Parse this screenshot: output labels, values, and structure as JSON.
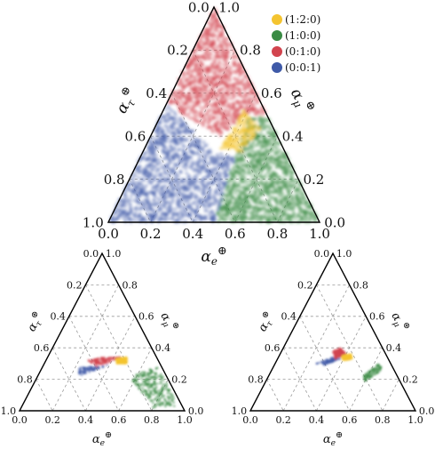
{
  "chart_data": [
    {
      "type": "scatter",
      "subtype": "ternary",
      "axis_labels": {
        "bottom": "α_e⊕",
        "left": "α_τ⊕",
        "right": "α_μ⊕"
      },
      "ticks": [
        "0.0",
        "0.2",
        "0.4",
        "0.6",
        "0.8",
        "1.0"
      ],
      "grid": true,
      "legend": {
        "placement": "top-right",
        "entries": [
          {
            "label": "(1:2:0)",
            "color": "#f4c430"
          },
          {
            "label": "(1:0:0)",
            "color": "#3a8b44"
          },
          {
            "label": "(0:1:0)",
            "color": "#d2444e"
          },
          {
            "label": "(0:0:1)",
            "color": "#3f5aa8"
          }
        ]
      },
      "series": [
        {
          "name": "(1:0:0)",
          "color": "#3a8b44",
          "region": [
            [
              0.5,
              0.0,
              0.5
            ],
            [
              1.0,
              0.0,
              0.0
            ],
            [
              0.5,
              0.5,
              0.0
            ],
            [
              0.42,
              0.48,
              0.1
            ],
            [
              0.45,
              0.3,
              0.25
            ]
          ]
        },
        {
          "name": "(0:0:1)",
          "color": "#3f5aa8",
          "region": [
            [
              0.0,
              0.0,
              1.0
            ],
            [
              0.5,
              0.0,
              0.5
            ],
            [
              0.45,
              0.3,
              0.25
            ],
            [
              0.33,
              0.33,
              0.34
            ],
            [
              0.0,
              0.55,
              0.45
            ]
          ]
        },
        {
          "name": "(0:1:0)",
          "color": "#d2444e",
          "region": [
            [
              0.0,
              1.0,
              0.0
            ],
            [
              0.5,
              0.5,
              0.0
            ],
            [
              0.4,
              0.5,
              0.1
            ],
            [
              0.33,
              0.4,
              0.27
            ],
            [
              0.0,
              0.55,
              0.45
            ]
          ]
        },
        {
          "name": "(1:2:0)",
          "color": "#f4c430",
          "region": [
            [
              0.38,
              0.52,
              0.1
            ],
            [
              0.5,
              0.44,
              0.06
            ],
            [
              0.47,
              0.33,
              0.2
            ],
            [
              0.36,
              0.34,
              0.3
            ]
          ]
        }
      ]
    },
    {
      "type": "scatter",
      "subtype": "ternary",
      "axis_labels": {
        "bottom": "α_e⊕",
        "left": "α_τ⊕",
        "right": "α_μ⊕"
      },
      "ticks": [
        "0.0",
        "0.2",
        "0.4",
        "0.6",
        "0.8",
        "1.0"
      ],
      "grid": true,
      "series": [
        {
          "name": "(1:0:0)",
          "color": "#3a8b44",
          "region": [
            [
              0.55,
              0.22,
              0.23
            ],
            [
              0.7,
              0.28,
              0.02
            ],
            [
              0.95,
              0.03,
              0.02
            ],
            [
              0.8,
              0.02,
              0.18
            ]
          ]
        },
        {
          "name": "(0:0:1)",
          "color": "#3f5aa8",
          "region": [
            [
              0.22,
              0.28,
              0.5
            ],
            [
              0.35,
              0.28,
              0.37
            ],
            [
              0.42,
              0.3,
              0.28
            ],
            [
              0.25,
              0.22,
              0.53
            ]
          ]
        },
        {
          "name": "(0:1:0)",
          "color": "#d2444e",
          "region": [
            [
              0.25,
              0.32,
              0.43
            ],
            [
              0.33,
              0.34,
              0.33
            ],
            [
              0.45,
              0.34,
              0.21
            ],
            [
              0.33,
              0.28,
              0.39
            ]
          ]
        },
        {
          "name": "(1:2:0)",
          "color": "#f4c430",
          "region": [
            [
              0.42,
              0.33,
              0.25
            ],
            [
              0.48,
              0.34,
              0.18
            ],
            [
              0.5,
              0.3,
              0.2
            ],
            [
              0.44,
              0.3,
              0.26
            ]
          ]
        }
      ]
    },
    {
      "type": "scatter",
      "subtype": "ternary",
      "axis_labels": {
        "bottom": "α_e⊕",
        "left": "α_τ⊕",
        "right": "α_μ⊕"
      },
      "ticks": [
        "0.0",
        "0.2",
        "0.4",
        "0.6",
        "0.8",
        "1.0"
      ],
      "grid": true,
      "series": [
        {
          "name": "(1:0:0)",
          "color": "#3a8b44",
          "region": [
            [
              0.57,
              0.22,
              0.21
            ],
            [
              0.63,
              0.3,
              0.07
            ],
            [
              0.67,
              0.26,
              0.07
            ],
            [
              0.6,
              0.19,
              0.21
            ]
          ]
        },
        {
          "name": "(0:0:1)",
          "color": "#3f5aa8",
          "region": [
            [
              0.25,
              0.3,
              0.45
            ],
            [
              0.33,
              0.34,
              0.33
            ],
            [
              0.38,
              0.33,
              0.29
            ],
            [
              0.3,
              0.29,
              0.41
            ]
          ]
        },
        {
          "name": "(0:1:0)",
          "color": "#d2444e",
          "region": [
            [
              0.31,
              0.38,
              0.31
            ],
            [
              0.35,
              0.4,
              0.25
            ],
            [
              0.4,
              0.36,
              0.24
            ],
            [
              0.35,
              0.33,
              0.32
            ]
          ]
        },
        {
          "name": "(1:2:0)",
          "color": "#f4c430",
          "region": [
            [
              0.38,
              0.35,
              0.27
            ],
            [
              0.43,
              0.36,
              0.21
            ],
            [
              0.45,
              0.33,
              0.22
            ],
            [
              0.4,
              0.32,
              0.28
            ]
          ]
        }
      ]
    }
  ]
}
